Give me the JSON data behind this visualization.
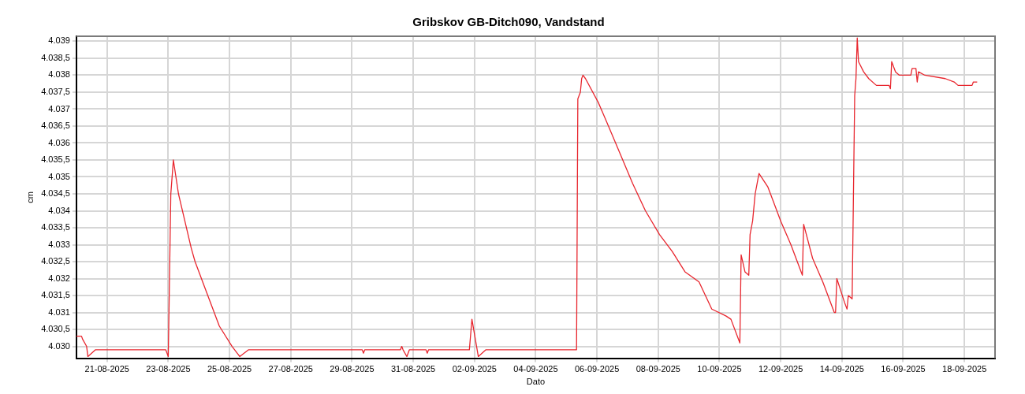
{
  "chart_data": {
    "type": "line",
    "title": "Gribskov GB-Ditch090, Vandstand",
    "xlabel": "Dato",
    "ylabel": "cm",
    "xlim": [
      "2025-08-20",
      "2025-09-19"
    ],
    "xticks": [
      {
        "value": "2025-08-21",
        "label": "21-08-2025"
      },
      {
        "value": "2025-08-23",
        "label": "23-08-2025"
      },
      {
        "value": "2025-08-25",
        "label": "25-08-2025"
      },
      {
        "value": "2025-08-27",
        "label": "27-08-2025"
      },
      {
        "value": "2025-08-29",
        "label": "29-08-2025"
      },
      {
        "value": "2025-08-31",
        "label": "31-08-2025"
      },
      {
        "value": "2025-09-02",
        "label": "02-09-2025"
      },
      {
        "value": "2025-09-04",
        "label": "04-09-2025"
      },
      {
        "value": "2025-09-06",
        "label": "06-09-2025"
      },
      {
        "value": "2025-09-08",
        "label": "08-09-2025"
      },
      {
        "value": "2025-09-10",
        "label": "10-09-2025"
      },
      {
        "value": "2025-09-12",
        "label": "12-09-2025"
      },
      {
        "value": "2025-09-14",
        "label": "14-09-2025"
      },
      {
        "value": "2025-09-16",
        "label": "16-09-2025"
      },
      {
        "value": "2025-09-18",
        "label": "18-09-2025"
      }
    ],
    "ylim": [
      4029.65,
      4039.15
    ],
    "yticks": [
      {
        "value": 4030,
        "label": "4.030"
      },
      {
        "value": 4030.5,
        "label": "4.030,5"
      },
      {
        "value": 4031,
        "label": "4.031"
      },
      {
        "value": 4031.5,
        "label": "4.031,5"
      },
      {
        "value": 4032,
        "label": "4.032"
      },
      {
        "value": 4032.5,
        "label": "4.032,5"
      },
      {
        "value": 4033,
        "label": "4.033"
      },
      {
        "value": 4033.5,
        "label": "4.033,5"
      },
      {
        "value": 4034,
        "label": "4.034"
      },
      {
        "value": 4034.5,
        "label": "4.034,5"
      },
      {
        "value": 4035,
        "label": "4.035"
      },
      {
        "value": 4035.5,
        "label": "4.035,5"
      },
      {
        "value": 4036,
        "label": "4.036"
      },
      {
        "value": 4036.5,
        "label": "4.036,5"
      },
      {
        "value": 4037,
        "label": "4.037"
      },
      {
        "value": 4037.5,
        "label": "4.037,5"
      },
      {
        "value": 4038,
        "label": "4.038"
      },
      {
        "value": 4038.5,
        "label": "4.038,5"
      },
      {
        "value": 4039,
        "label": "4.039"
      }
    ],
    "grid": true,
    "legend": false,
    "marker": "none",
    "line_style": "solid",
    "series": [
      {
        "color": "#e8262e",
        "x": [
          "2025-08-20T00:00",
          "2025-08-20T04:00",
          "2025-08-20T05:00",
          "2025-08-20T08:00",
          "2025-08-20T09:00",
          "2025-08-20T15:00",
          "2025-08-22T22:00",
          "2025-08-23T00:00",
          "2025-08-23T02:00",
          "2025-08-23T04:00",
          "2025-08-23T08:00",
          "2025-08-23T18:00",
          "2025-08-23T21:00",
          "2025-08-24T05:00",
          "2025-08-24T16:00",
          "2025-08-25T02:00",
          "2025-08-25T08:00",
          "2025-08-25T15:00",
          "2025-08-29T08:00",
          "2025-08-29T09:00",
          "2025-08-29T10:00",
          "2025-08-30T14:00",
          "2025-08-30T15:00",
          "2025-08-30T16:00",
          "2025-08-30T19:00",
          "2025-08-30T21:00",
          "2025-08-31T10:00",
          "2025-08-31T11:00",
          "2025-08-31T12:00",
          "2025-09-01T20:00",
          "2025-09-01T22:00",
          "2025-09-02T03:00",
          "2025-09-02T09:00",
          "2025-09-05T08:00",
          "2025-09-05T09:00",
          "2025-09-05T11:00",
          "2025-09-05T12:00",
          "2025-09-05T13:00",
          "2025-09-05T15:00",
          "2025-09-06T01:00",
          "2025-09-06T09:00",
          "2025-09-06T18:00",
          "2025-09-07T04:00",
          "2025-09-07T14:00",
          "2025-09-08T01:00",
          "2025-09-08T11:00",
          "2025-09-08T21:00",
          "2025-09-09T08:00",
          "2025-09-09T18:00",
          "2025-09-10T05:00",
          "2025-09-10T09:00",
          "2025-09-10T16:00",
          "2025-09-10T17:00",
          "2025-09-10T20:00",
          "2025-09-10T23:00",
          "2025-09-11T00:00",
          "2025-09-11T02:00",
          "2025-09-11T04:00",
          "2025-09-11T07:00",
          "2025-09-11T14:00",
          "2025-09-12T00:00",
          "2025-09-12T08:00",
          "2025-09-12T17:00",
          "2025-09-12T18:00",
          "2025-09-13T01:00",
          "2025-09-13T09:00",
          "2025-09-13T18:00",
          "2025-09-13T19:00",
          "2025-09-13T20:00",
          "2025-09-14T02:00",
          "2025-09-14T04:00",
          "2025-09-14T05:00",
          "2025-09-14T08:00",
          "2025-09-14T10:00",
          "2025-09-14T11:00",
          "2025-09-14T12:00",
          "2025-09-14T13:00",
          "2025-09-14T17:00",
          "2025-09-14T21:00",
          "2025-09-15T03:00",
          "2025-09-15T13:00",
          "2025-09-15T14:00",
          "2025-09-15T15:00",
          "2025-09-15T18:00",
          "2025-09-15T21:00",
          "2025-09-16T06:00",
          "2025-09-16T07:00",
          "2025-09-16T10:00",
          "2025-09-16T11:00",
          "2025-09-16T12:00",
          "2025-09-16T17:00",
          "2025-09-17T09:00",
          "2025-09-17T16:00",
          "2025-09-17T19:00",
          "2025-09-18T06:00",
          "2025-09-18T07:00",
          "2025-09-18T10:00"
        ],
        "values": [
          4030.3,
          4030.3,
          4030.2,
          4030.0,
          4029.7,
          4029.9,
          4029.9,
          4029.7,
          4034.5,
          4035.5,
          4034.5,
          4032.9,
          4032.5,
          4031.7,
          4030.6,
          4030.0,
          4029.7,
          4029.9,
          4029.9,
          4029.8,
          4029.9,
          4029.9,
          4030.0,
          4029.9,
          4029.7,
          4029.9,
          4029.9,
          4029.8,
          4029.9,
          4029.9,
          4030.8,
          4029.7,
          4029.9,
          4029.9,
          4037.3,
          4037.5,
          4037.9,
          4038.0,
          4037.9,
          4037.2,
          4036.5,
          4035.7,
          4034.8,
          4034.0,
          4033.3,
          4032.8,
          4032.2,
          4031.9,
          4031.1,
          4030.9,
          4030.8,
          4030.1,
          4032.7,
          4032.2,
          4032.1,
          4033.3,
          4033.7,
          4034.5,
          4035.1,
          4034.7,
          4033.7,
          4033.0,
          4032.1,
          4033.6,
          4032.6,
          4031.9,
          4031.0,
          4031.0,
          4032.0,
          4031.3,
          4031.1,
          4031.5,
          4031.4,
          4037.4,
          4037.9,
          4039.1,
          4038.4,
          4038.1,
          4037.9,
          4037.7,
          4037.7,
          4037.6,
          4038.4,
          4038.1,
          4038.0,
          4038.0,
          4038.2,
          4038.2,
          4037.8,
          4038.1,
          4038.0,
          4037.9,
          4037.8,
          4037.7,
          4037.7,
          4037.8,
          4037.8
        ]
      }
    ]
  }
}
